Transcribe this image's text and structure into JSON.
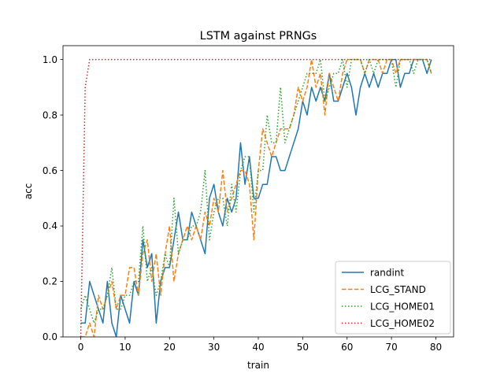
{
  "chart_data": {
    "type": "line",
    "title": "LSTM against PRNGs",
    "xlabel": "train",
    "ylabel": "acc",
    "xlim": [
      -4,
      84
    ],
    "ylim": [
      0,
      1.05
    ],
    "xticks": [
      0,
      10,
      20,
      30,
      40,
      50,
      60,
      70,
      80
    ],
    "yticks": [
      0.0,
      0.2,
      0.4,
      0.6,
      0.8,
      1.0
    ],
    "xtick_labels": [
      "0",
      "10",
      "20",
      "30",
      "40",
      "50",
      "60",
      "70",
      "80"
    ],
    "ytick_labels": [
      "0.0",
      "0.2",
      "0.4",
      "0.6",
      "0.8",
      "1.0"
    ],
    "legend_position": "lower-right",
    "grid": false,
    "series": [
      {
        "name": "randint",
        "color": "#1f77b4",
        "style": "solid",
        "x": [
          0,
          1,
          2,
          3,
          4,
          5,
          6,
          7,
          8,
          9,
          10,
          11,
          12,
          13,
          14,
          15,
          16,
          17,
          18,
          19,
          20,
          21,
          22,
          23,
          24,
          25,
          26,
          27,
          28,
          29,
          30,
          31,
          32,
          33,
          34,
          35,
          36,
          37,
          38,
          39,
          40,
          41,
          42,
          43,
          44,
          45,
          46,
          47,
          48,
          49,
          50,
          51,
          52,
          53,
          54,
          55,
          56,
          57,
          58,
          59,
          60,
          61,
          62,
          63,
          64,
          65,
          66,
          67,
          68,
          69,
          70,
          71,
          72,
          73,
          74,
          75,
          76,
          77,
          78,
          79
        ],
        "values": [
          0.05,
          0.05,
          0.2,
          0.15,
          0.1,
          0.05,
          0.2,
          0.05,
          0.0,
          0.15,
          0.1,
          0.05,
          0.2,
          0.15,
          0.35,
          0.25,
          0.3,
          0.05,
          0.2,
          0.25,
          0.25,
          0.35,
          0.45,
          0.35,
          0.35,
          0.45,
          0.4,
          0.35,
          0.3,
          0.5,
          0.55,
          0.45,
          0.4,
          0.5,
          0.45,
          0.5,
          0.7,
          0.55,
          0.65,
          0.5,
          0.5,
          0.55,
          0.55,
          0.65,
          0.65,
          0.6,
          0.6,
          0.65,
          0.7,
          0.75,
          0.85,
          0.8,
          0.9,
          0.85,
          0.9,
          0.85,
          0.95,
          0.85,
          0.85,
          0.9,
          0.95,
          0.9,
          0.8,
          0.9,
          0.95,
          0.9,
          0.95,
          0.9,
          0.95,
          0.95,
          1.0,
          1.0,
          0.9,
          0.95,
          0.95,
          1.0,
          1.0,
          1.0,
          0.95,
          1.0
        ]
      },
      {
        "name": "LCG_STAND",
        "color": "#ff7f0e",
        "style": "dashed",
        "x": [
          0,
          1,
          2,
          3,
          4,
          5,
          6,
          7,
          8,
          9,
          10,
          11,
          12,
          13,
          14,
          15,
          16,
          17,
          18,
          19,
          20,
          21,
          22,
          23,
          24,
          25,
          26,
          27,
          28,
          29,
          30,
          31,
          32,
          33,
          34,
          35,
          36,
          37,
          38,
          39,
          40,
          41,
          42,
          43,
          44,
          45,
          46,
          47,
          48,
          49,
          50,
          51,
          52,
          53,
          54,
          55,
          56,
          57,
          58,
          59,
          60,
          61,
          62,
          63,
          64,
          65,
          66,
          67,
          68,
          69,
          70,
          71,
          72,
          73,
          74,
          75,
          76,
          77,
          78,
          79
        ],
        "values": [
          0.0,
          0.0,
          0.05,
          0.0,
          0.15,
          0.1,
          0.15,
          0.2,
          0.1,
          0.15,
          0.15,
          0.25,
          0.25,
          0.15,
          0.3,
          0.35,
          0.2,
          0.3,
          0.15,
          0.3,
          0.4,
          0.2,
          0.3,
          0.35,
          0.4,
          0.35,
          0.4,
          0.35,
          0.45,
          0.4,
          0.5,
          0.45,
          0.6,
          0.45,
          0.5,
          0.55,
          0.6,
          0.6,
          0.55,
          0.35,
          0.6,
          0.75,
          0.7,
          0.65,
          0.7,
          0.75,
          0.75,
          0.75,
          0.8,
          0.9,
          0.85,
          0.9,
          1.0,
          0.9,
          0.95,
          0.8,
          0.95,
          0.9,
          0.85,
          0.95,
          1.0,
          1.0,
          1.0,
          1.0,
          0.95,
          1.0,
          1.0,
          1.0,
          0.95,
          1.0,
          1.0,
          0.95,
          1.0,
          1.0,
          1.0,
          1.0,
          1.0,
          1.0,
          1.0,
          0.95
        ]
      },
      {
        "name": "LCG_HOME01",
        "color": "#2ca02c",
        "style": "dotted",
        "x": [
          0,
          1,
          2,
          3,
          4,
          5,
          6,
          7,
          8,
          9,
          10,
          11,
          12,
          13,
          14,
          15,
          16,
          17,
          18,
          19,
          20,
          21,
          22,
          23,
          24,
          25,
          26,
          27,
          28,
          29,
          30,
          31,
          32,
          33,
          34,
          35,
          36,
          37,
          38,
          39,
          40,
          41,
          42,
          43,
          44,
          45,
          46,
          47,
          48,
          49,
          50,
          51,
          52,
          53,
          54,
          55,
          56,
          57,
          58,
          59,
          60,
          61,
          62,
          63,
          64,
          65,
          66,
          67,
          68,
          69,
          70,
          71,
          72,
          73,
          74,
          75,
          76,
          77,
          78,
          79
        ],
        "values": [
          0.1,
          0.15,
          0.1,
          0.05,
          0.1,
          0.1,
          0.15,
          0.25,
          0.1,
          0.1,
          0.15,
          0.15,
          0.2,
          0.2,
          0.4,
          0.2,
          0.25,
          0.15,
          0.2,
          0.3,
          0.25,
          0.5,
          0.3,
          0.35,
          0.35,
          0.4,
          0.4,
          0.45,
          0.6,
          0.35,
          0.45,
          0.5,
          0.5,
          0.4,
          0.55,
          0.45,
          0.6,
          0.65,
          0.65,
          0.45,
          0.6,
          0.6,
          0.8,
          0.7,
          0.7,
          0.9,
          0.7,
          0.75,
          0.8,
          0.85,
          0.9,
          0.95,
          0.95,
          0.95,
          1.0,
          0.85,
          0.9,
          0.95,
          0.95,
          1.0,
          0.9,
          1.0,
          1.0,
          1.0,
          0.95,
          1.0,
          0.95,
          1.0,
          1.0,
          1.0,
          1.0,
          0.9,
          1.0,
          1.0,
          1.0,
          0.95,
          1.0,
          1.0,
          1.0,
          0.95
        ]
      },
      {
        "name": "LCG_HOME02",
        "color": "#d62728",
        "style": "dotted",
        "x": [
          0,
          1,
          2,
          3,
          4,
          5,
          6,
          7,
          8,
          9,
          10,
          11,
          12,
          13,
          14,
          15,
          16,
          17,
          18,
          19,
          20,
          21,
          22,
          23,
          24,
          25,
          26,
          27,
          28,
          29,
          30,
          31,
          32,
          33,
          34,
          35,
          36,
          37,
          38,
          39,
          40,
          41,
          42,
          43,
          44,
          45,
          46,
          47,
          48,
          49,
          50,
          51,
          52,
          53,
          54,
          55,
          56,
          57,
          58,
          59,
          60,
          61,
          62,
          63,
          64,
          65,
          66,
          67,
          68,
          69,
          70,
          71,
          72,
          73,
          74,
          75,
          76,
          77,
          78,
          79
        ],
        "values": [
          0.0,
          0.9,
          1.0,
          1.0,
          1.0,
          1.0,
          1.0,
          1.0,
          1.0,
          1.0,
          1.0,
          1.0,
          1.0,
          1.0,
          1.0,
          1.0,
          1.0,
          1.0,
          1.0,
          1.0,
          1.0,
          1.0,
          1.0,
          1.0,
          1.0,
          1.0,
          1.0,
          1.0,
          1.0,
          1.0,
          1.0,
          1.0,
          1.0,
          1.0,
          1.0,
          1.0,
          1.0,
          1.0,
          1.0,
          1.0,
          1.0,
          1.0,
          1.0,
          1.0,
          1.0,
          1.0,
          1.0,
          1.0,
          1.0,
          1.0,
          1.0,
          1.0,
          1.0,
          1.0,
          1.0,
          1.0,
          1.0,
          1.0,
          1.0,
          1.0,
          1.0,
          1.0,
          1.0,
          1.0,
          1.0,
          1.0,
          1.0,
          1.0,
          1.0,
          1.0,
          1.0,
          1.0,
          1.0,
          1.0,
          1.0,
          1.0,
          1.0,
          1.0,
          1.0,
          1.0
        ]
      }
    ]
  }
}
